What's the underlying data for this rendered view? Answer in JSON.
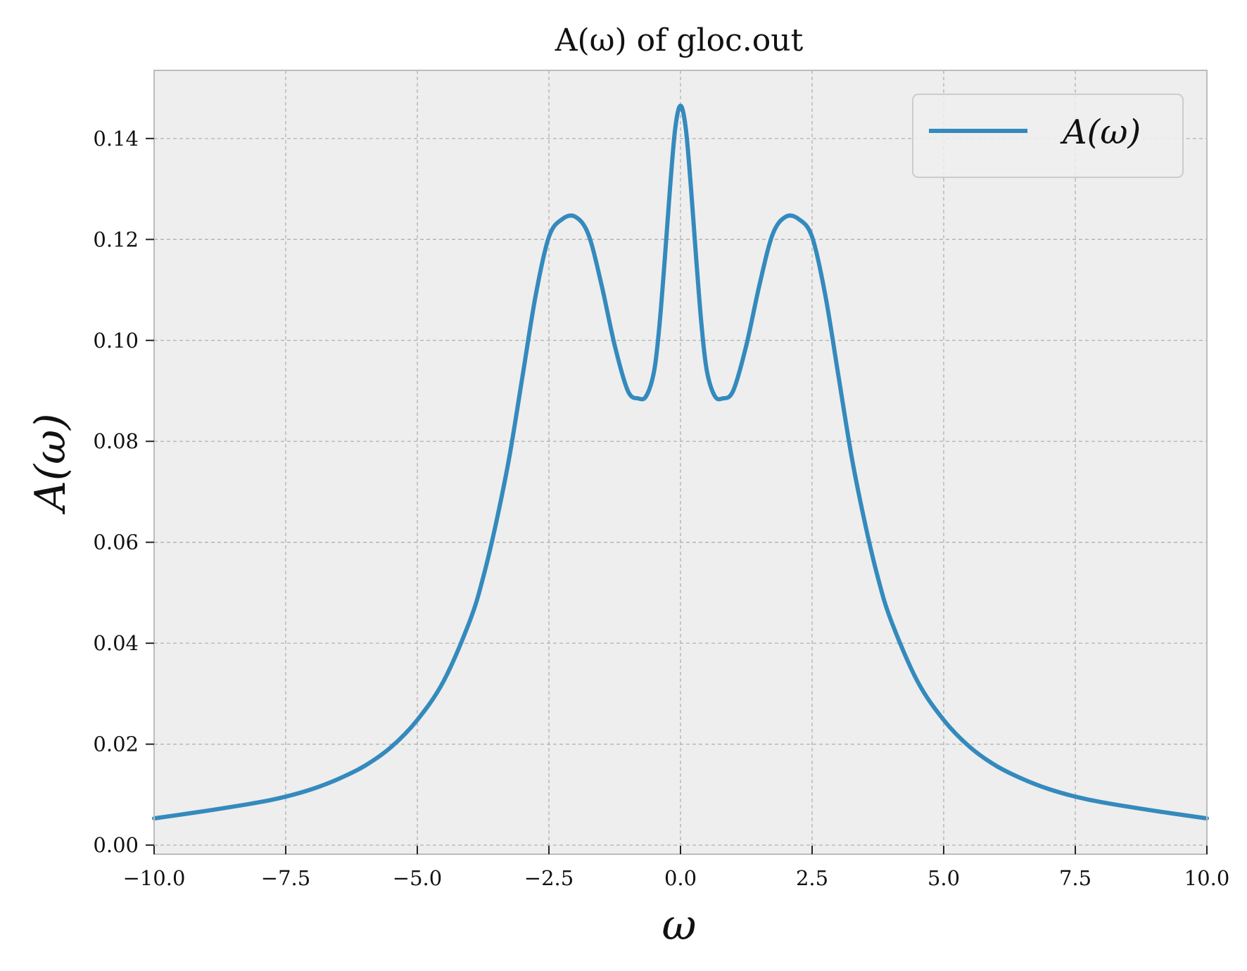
{
  "chart_data": {
    "type": "line",
    "title": "A(ω) of gloc.out",
    "xlabel": "ω",
    "ylabel": "A(ω)",
    "xlim": [
      -10,
      10
    ],
    "ylim": [
      -0.0018,
      0.1535
    ],
    "grid": true,
    "legend": {
      "placement": "top-right",
      "entries": [
        "A(ω)"
      ]
    },
    "x_ticks": [
      -10,
      -7.5,
      -5,
      -2.5,
      0,
      2.5,
      5,
      7.5,
      10
    ],
    "x_tick_labels": [
      "−10.0",
      "−7.5",
      "−5.0",
      "−2.5",
      "0.0",
      "2.5",
      "5.0",
      "7.5",
      "10.0"
    ],
    "y_ticks": [
      0,
      0.02,
      0.04,
      0.06,
      0.08,
      0.1,
      0.12,
      0.14
    ],
    "y_tick_labels": [
      "0.00",
      "0.02",
      "0.04",
      "0.06",
      "0.08",
      "0.10",
      "0.12",
      "0.14"
    ],
    "colors": {
      "line": "#348abd",
      "plot_bg": "#eeeeee",
      "grid": "#b0b0b0",
      "frame": "#bcbcbc"
    },
    "series": [
      {
        "name": "A(ω)",
        "x": [
          -10,
          -9,
          -8,
          -7.5,
          -7,
          -6.5,
          -6,
          -5.5,
          -5,
          -4.5,
          -4,
          -3.75,
          -3.5,
          -3.25,
          -3,
          -2.75,
          -2.5,
          -2.25,
          -2,
          -1.75,
          -1.5,
          -1.25,
          -1,
          -0.8,
          -0.65,
          -0.5,
          -0.4,
          -0.3,
          -0.2,
          -0.1,
          0,
          0.1,
          0.2,
          0.3,
          0.4,
          0.5,
          0.65,
          0.8,
          1,
          1.25,
          1.5,
          1.75,
          2,
          2.25,
          2.5,
          2.75,
          3,
          3.25,
          3.5,
          3.75,
          4,
          4.5,
          5,
          5.5,
          6,
          6.5,
          7,
          7.5,
          8,
          9,
          10
        ],
        "values": [
          0.0053,
          0.0068,
          0.0085,
          0.0096,
          0.0111,
          0.0131,
          0.0157,
          0.0194,
          0.0248,
          0.0325,
          0.0445,
          0.053,
          0.064,
          0.077,
          0.093,
          0.109,
          0.1205,
          0.124,
          0.1245,
          0.121,
          0.111,
          0.099,
          0.09,
          0.0885,
          0.089,
          0.094,
          0.103,
          0.116,
          0.13,
          0.142,
          0.1465,
          0.142,
          0.13,
          0.116,
          0.103,
          0.094,
          0.089,
          0.0885,
          0.09,
          0.099,
          0.111,
          0.121,
          0.1245,
          0.124,
          0.1205,
          0.109,
          0.093,
          0.077,
          0.064,
          0.053,
          0.0445,
          0.0325,
          0.0248,
          0.0194,
          0.0157,
          0.0131,
          0.0111,
          0.0096,
          0.0085,
          0.0068,
          0.0053
        ]
      }
    ]
  }
}
